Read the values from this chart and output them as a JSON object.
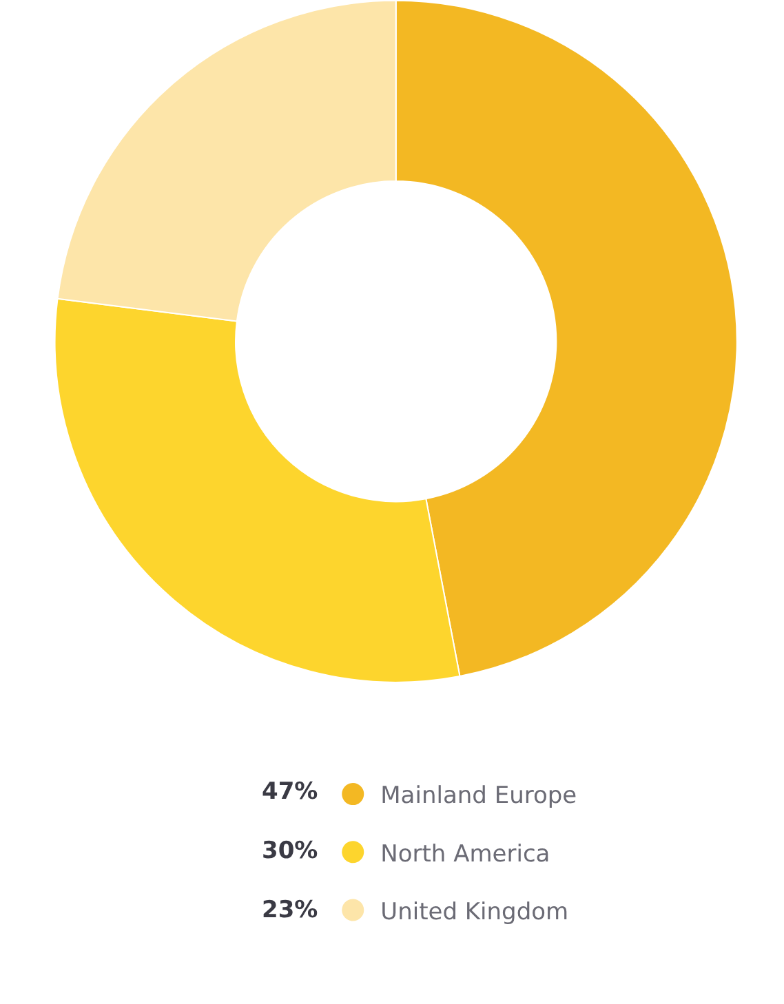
{
  "chart_data": {
    "type": "donut",
    "categories": [
      "Mainland Europe",
      "North America",
      "United Kingdom"
    ],
    "values": [
      47,
      30,
      23
    ],
    "colors": [
      "#f3b823",
      "#fdd52d",
      "#fde5a9"
    ],
    "value_labels": [
      "47%",
      "30%",
      "23%"
    ],
    "legend": "bottom"
  }
}
